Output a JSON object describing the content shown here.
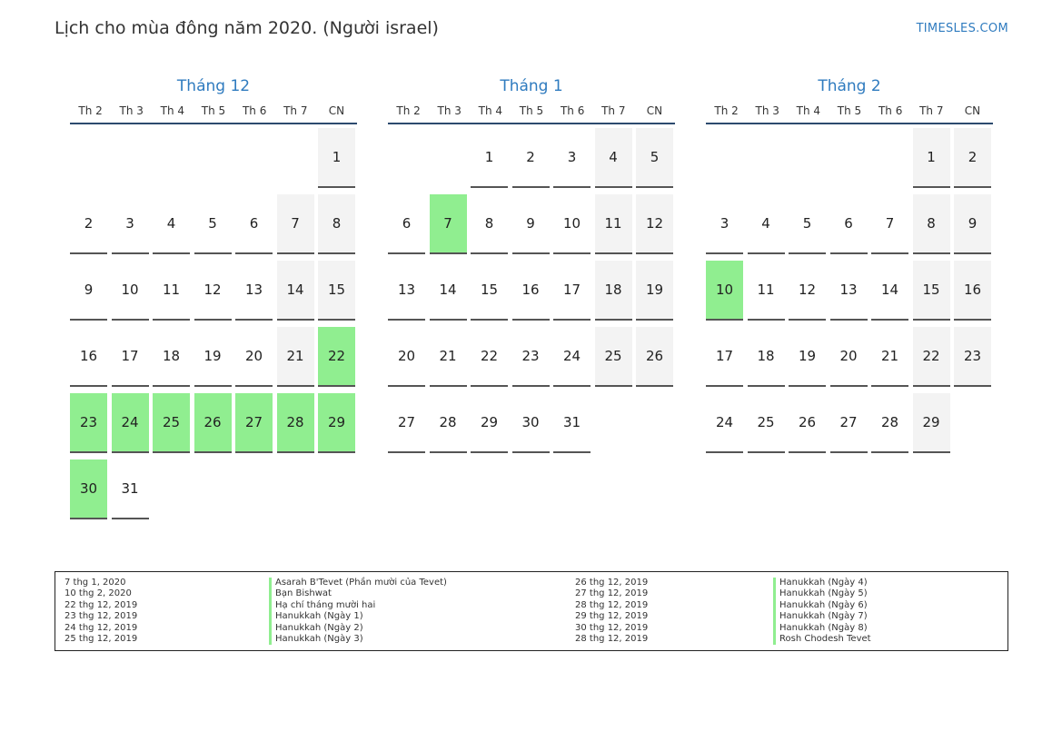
{
  "header": {
    "title": "Lịch cho mùa đông năm 2020. (Người israel)",
    "brand": "TIMESLES.COM"
  },
  "weekdays": [
    "Th 2",
    "Th 3",
    "Th 4",
    "Th 5",
    "Th 6",
    "Th 7",
    "CN"
  ],
  "months": [
    {
      "title": "Tháng 12",
      "weeks": [
        [
          "",
          "",
          "",
          "",
          "",
          "",
          "1"
        ],
        [
          "2",
          "3",
          "4",
          "5",
          "6",
          "7",
          "8"
        ],
        [
          "9",
          "10",
          "11",
          "12",
          "13",
          "14",
          "15"
        ],
        [
          "16",
          "17",
          "18",
          "19",
          "20",
          "21",
          "22"
        ],
        [
          "23",
          "24",
          "25",
          "26",
          "27",
          "28",
          "29"
        ],
        [
          "30",
          "31",
          "",
          "",
          "",
          "",
          ""
        ]
      ],
      "highlighted": [
        "22",
        "23",
        "24",
        "25",
        "26",
        "27",
        "28",
        "29",
        "30"
      ]
    },
    {
      "title": "Tháng 1",
      "weeks": [
        [
          "",
          "",
          "1",
          "2",
          "3",
          "4",
          "5"
        ],
        [
          "6",
          "7",
          "8",
          "9",
          "10",
          "11",
          "12"
        ],
        [
          "13",
          "14",
          "15",
          "16",
          "17",
          "18",
          "19"
        ],
        [
          "20",
          "21",
          "22",
          "23",
          "24",
          "25",
          "26"
        ],
        [
          "27",
          "28",
          "29",
          "30",
          "31",
          "",
          ""
        ]
      ],
      "highlighted": [
        "7"
      ]
    },
    {
      "title": "Tháng 2",
      "weeks": [
        [
          "",
          "",
          "",
          "",
          "",
          "1",
          "2"
        ],
        [
          "3",
          "4",
          "5",
          "6",
          "7",
          "8",
          "9"
        ],
        [
          "10",
          "11",
          "12",
          "13",
          "14",
          "15",
          "16"
        ],
        [
          "17",
          "18",
          "19",
          "20",
          "21",
          "22",
          "23"
        ],
        [
          "24",
          "25",
          "26",
          "27",
          "28",
          "29",
          ""
        ]
      ],
      "highlighted": [
        "10"
      ]
    }
  ],
  "legend": [
    {
      "date": "7 thg 1, 2020",
      "name": "Asarah B'Tevet (Phần mười của Tevet)"
    },
    {
      "date": "10 thg 2, 2020",
      "name": "Bạn Bishwat"
    },
    {
      "date": "22 thg 12, 2019",
      "name": "Hạ chí tháng mười hai"
    },
    {
      "date": "23 thg 12, 2019",
      "name": "Hanukkah (Ngày 1)"
    },
    {
      "date": "24 thg 12, 2019",
      "name": "Hanukkah (Ngày 2)"
    },
    {
      "date": "25 thg 12, 2019",
      "name": "Hanukkah (Ngày 3)"
    },
    {
      "date": "26 thg 12, 2019",
      "name": "Hanukkah (Ngày 4)"
    },
    {
      "date": "27 thg 12, 2019",
      "name": "Hanukkah (Ngày 5)"
    },
    {
      "date": "28 thg 12, 2019",
      "name": "Hanukkah (Ngày 6)"
    },
    {
      "date": "29 thg 12, 2019",
      "name": "Hanukkah (Ngày 7)"
    },
    {
      "date": "30 thg 12, 2019",
      "name": "Hanukkah (Ngày 8)"
    },
    {
      "date": "28 thg 12, 2019",
      "name": "Rosh Chodesh Tevet"
    }
  ],
  "colors": {
    "accent": "#2f7bbf",
    "highlight": "#90ee90",
    "weekend": "#f3f3f3"
  }
}
